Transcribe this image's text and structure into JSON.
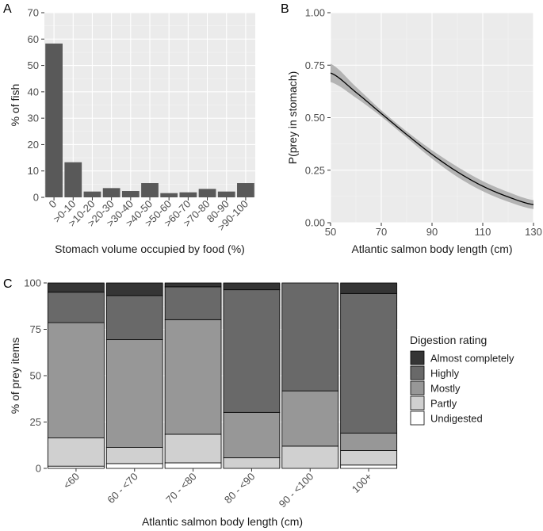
{
  "panels": {
    "a": {
      "tag": "A"
    },
    "b": {
      "tag": "B"
    },
    "c": {
      "tag": "C"
    }
  },
  "chart_data": [
    {
      "id": "a",
      "type": "bar",
      "xlabel": "Stomach volume occupied by food (%)",
      "ylabel": "% of fish",
      "ylim": [
        0,
        70
      ],
      "yticks": [
        0,
        10,
        20,
        30,
        40,
        50,
        60,
        70
      ],
      "grid": true,
      "color": "#595959",
      "categories": [
        "0",
        ">0-10",
        ">10-20",
        ">20-30",
        ">30-40",
        ">40-50",
        ">50-60",
        ">60-70",
        ">70-80",
        "80-90",
        ">90-100"
      ],
      "values": [
        58.3,
        13.3,
        2.2,
        3.5,
        2.4,
        5.4,
        1.6,
        1.9,
        3.2,
        2.2,
        5.4
      ]
    },
    {
      "id": "b",
      "type": "line",
      "xlabel": "Atlantic salmon body length (cm)",
      "ylabel": "P(prey in stomach)",
      "xlim": [
        50,
        130
      ],
      "ylim": [
        0,
        1
      ],
      "xticks": [
        50,
        70,
        90,
        110,
        130
      ],
      "yticks": [
        "0.00",
        "0.25",
        "0.50",
        "0.75",
        "1.00"
      ],
      "grid": true,
      "x": [
        50,
        60,
        70,
        80,
        90,
        100,
        110,
        120,
        130
      ],
      "y": [
        0.713,
        0.621,
        0.52,
        0.42,
        0.325,
        0.242,
        0.174,
        0.123,
        0.086
      ],
      "ci_lower": [
        0.67,
        0.595,
        0.505,
        0.405,
        0.305,
        0.218,
        0.15,
        0.1,
        0.065
      ],
      "ci_upper": [
        0.757,
        0.647,
        0.535,
        0.435,
        0.345,
        0.266,
        0.198,
        0.146,
        0.107
      ],
      "line_color": "#000000",
      "ribbon_color": "#b3b3b3"
    },
    {
      "id": "c",
      "type": "bar",
      "stacked": true,
      "xlabel": "Atlantic salmon body length (cm)",
      "ylabel": "% of prey items",
      "ylim": [
        0,
        100
      ],
      "yticks": [
        0,
        25,
        50,
        75,
        100
      ],
      "grid": true,
      "legend_title": "Digestion rating",
      "legend_position": "right",
      "categories": [
        "<60",
        "60 - <70",
        "70 - <80",
        "80 - <90",
        "90 - <100",
        "100+"
      ],
      "series": [
        {
          "name": "Undigested",
          "color": "#ffffff",
          "values": [
            1.2,
            2.6,
            3.0,
            0.0,
            0.0,
            1.8
          ]
        },
        {
          "name": "Partly",
          "color": "#d0d0d0",
          "values": [
            15.2,
            8.7,
            15.4,
            5.7,
            12.0,
            7.8
          ]
        },
        {
          "name": "Mostly",
          "color": "#979797",
          "values": [
            62.2,
            58.1,
            61.8,
            24.5,
            29.8,
            9.4
          ]
        },
        {
          "name": "Highly",
          "color": "#696969",
          "values": [
            16.4,
            23.8,
            17.7,
            66.1,
            58.2,
            75.3
          ]
        },
        {
          "name": "Almost completely",
          "color": "#353535",
          "values": [
            5.0,
            6.8,
            2.1,
            3.7,
            0.0,
            5.7
          ]
        }
      ],
      "legend_order": [
        "Almost completely",
        "Highly",
        "Mostly",
        "Partly",
        "Undigested"
      ]
    }
  ]
}
